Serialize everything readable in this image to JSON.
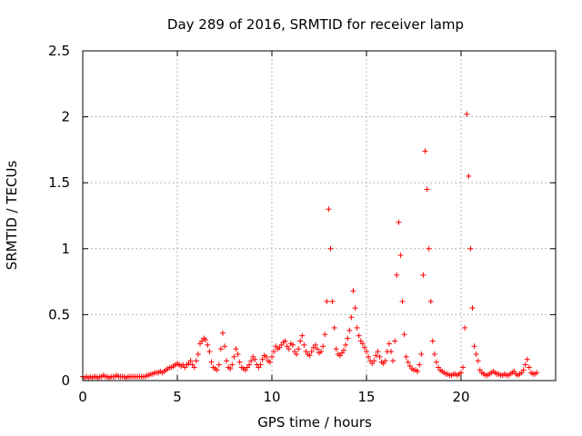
{
  "chart_data": {
    "type": "scatter",
    "title": "Day 289 of 2016, SRMTID for receiver lamp",
    "xlabel": "GPS time / hours",
    "ylabel": "SRMTID / TECUs",
    "xlim": [
      0,
      25
    ],
    "ylim": [
      0,
      2.5
    ],
    "xticks": [
      "0",
      "5",
      "10",
      "15",
      "20"
    ],
    "xtick_values": [
      0,
      5,
      10,
      15,
      20
    ],
    "yticks": [
      "0",
      "0.5",
      "1",
      "1.5",
      "2",
      "2.5"
    ],
    "ytick_values": [
      0,
      0.5,
      1,
      1.5,
      2,
      2.5
    ],
    "grid": true,
    "marker": "+",
    "marker_color": "#ff0000",
    "series": [
      {
        "name": "SRMTID",
        "x_start": 0,
        "x_step": 0.1,
        "values": [
          0.03,
          0.02,
          0.03,
          0.02,
          0.03,
          0.02,
          0.03,
          0.03,
          0.02,
          0.03,
          0.03,
          0.04,
          0.03,
          0.03,
          0.02,
          0.03,
          0.03,
          0.03,
          0.04,
          0.03,
          0.03,
          0.03,
          0.03,
          0.02,
          0.03,
          0.03,
          0.03,
          0.03,
          0.03,
          0.03,
          0.03,
          0.03,
          0.03,
          0.03,
          0.04,
          0.04,
          0.05,
          0.05,
          0.06,
          0.06,
          0.06,
          0.07,
          0.06,
          0.07,
          0.08,
          0.09,
          0.1,
          0.1,
          0.11,
          0.12,
          0.13,
          0.12,
          0.11,
          0.12,
          0.1,
          0.12,
          0.13,
          0.15,
          0.12,
          0.1,
          0.15,
          0.2,
          0.28,
          0.3,
          0.32,
          0.31,
          0.27,
          0.22,
          0.14,
          0.1,
          0.09,
          0.08,
          0.12,
          0.24,
          0.36,
          0.26,
          0.15,
          0.1,
          0.09,
          0.12,
          0.18,
          0.24,
          0.2,
          0.14,
          0.1,
          0.09,
          0.08,
          0.1,
          0.12,
          0.15,
          0.18,
          0.16,
          0.12,
          0.1,
          0.12,
          0.16,
          0.19,
          0.18,
          0.15,
          0.14,
          0.18,
          0.22,
          0.26,
          0.24,
          0.25,
          0.27,
          0.29,
          0.3,
          0.26,
          0.24,
          0.28,
          0.27,
          0.22,
          0.2,
          0.24,
          0.3,
          0.34,
          0.27,
          0.22,
          0.2,
          0.19,
          0.22,
          0.25,
          0.27,
          0.24,
          0.21,
          0.22,
          0.26,
          0.35,
          0.6,
          1.3,
          1.0,
          0.6,
          0.4,
          0.24,
          0.2,
          0.19,
          0.21,
          0.23,
          0.27,
          0.32,
          0.38,
          0.48,
          0.68,
          0.55,
          0.4,
          0.34,
          0.3,
          0.28,
          0.25,
          0.22,
          0.18,
          0.15,
          0.13,
          0.15,
          0.19,
          0.22,
          0.18,
          0.14,
          0.13,
          0.15,
          0.22,
          0.28,
          0.22,
          0.15,
          0.3,
          0.8,
          1.2,
          0.95,
          0.6,
          0.35,
          0.18,
          0.14,
          0.11,
          0.09,
          0.08,
          0.08,
          0.07,
          0.12,
          0.2,
          0.8,
          1.74,
          1.45,
          1.0,
          0.6,
          0.3,
          0.2,
          0.14,
          0.1,
          0.08,
          0.07,
          0.06,
          0.05,
          0.05,
          0.04,
          0.04,
          0.05,
          0.05,
          0.04,
          0.05,
          0.06,
          0.1,
          0.4,
          2.02,
          1.55,
          1.0,
          0.55,
          0.26,
          0.2,
          0.15,
          0.08,
          0.06,
          0.05,
          0.04,
          0.04,
          0.05,
          0.06,
          0.07,
          0.06,
          0.05,
          0.05,
          0.04,
          0.04,
          0.05,
          0.04,
          0.04,
          0.05,
          0.06,
          0.07,
          0.05,
          0.04,
          0.05,
          0.06,
          0.08,
          0.12,
          0.16,
          0.1,
          0.06,
          0.05,
          0.05,
          0.06
        ]
      }
    ]
  }
}
